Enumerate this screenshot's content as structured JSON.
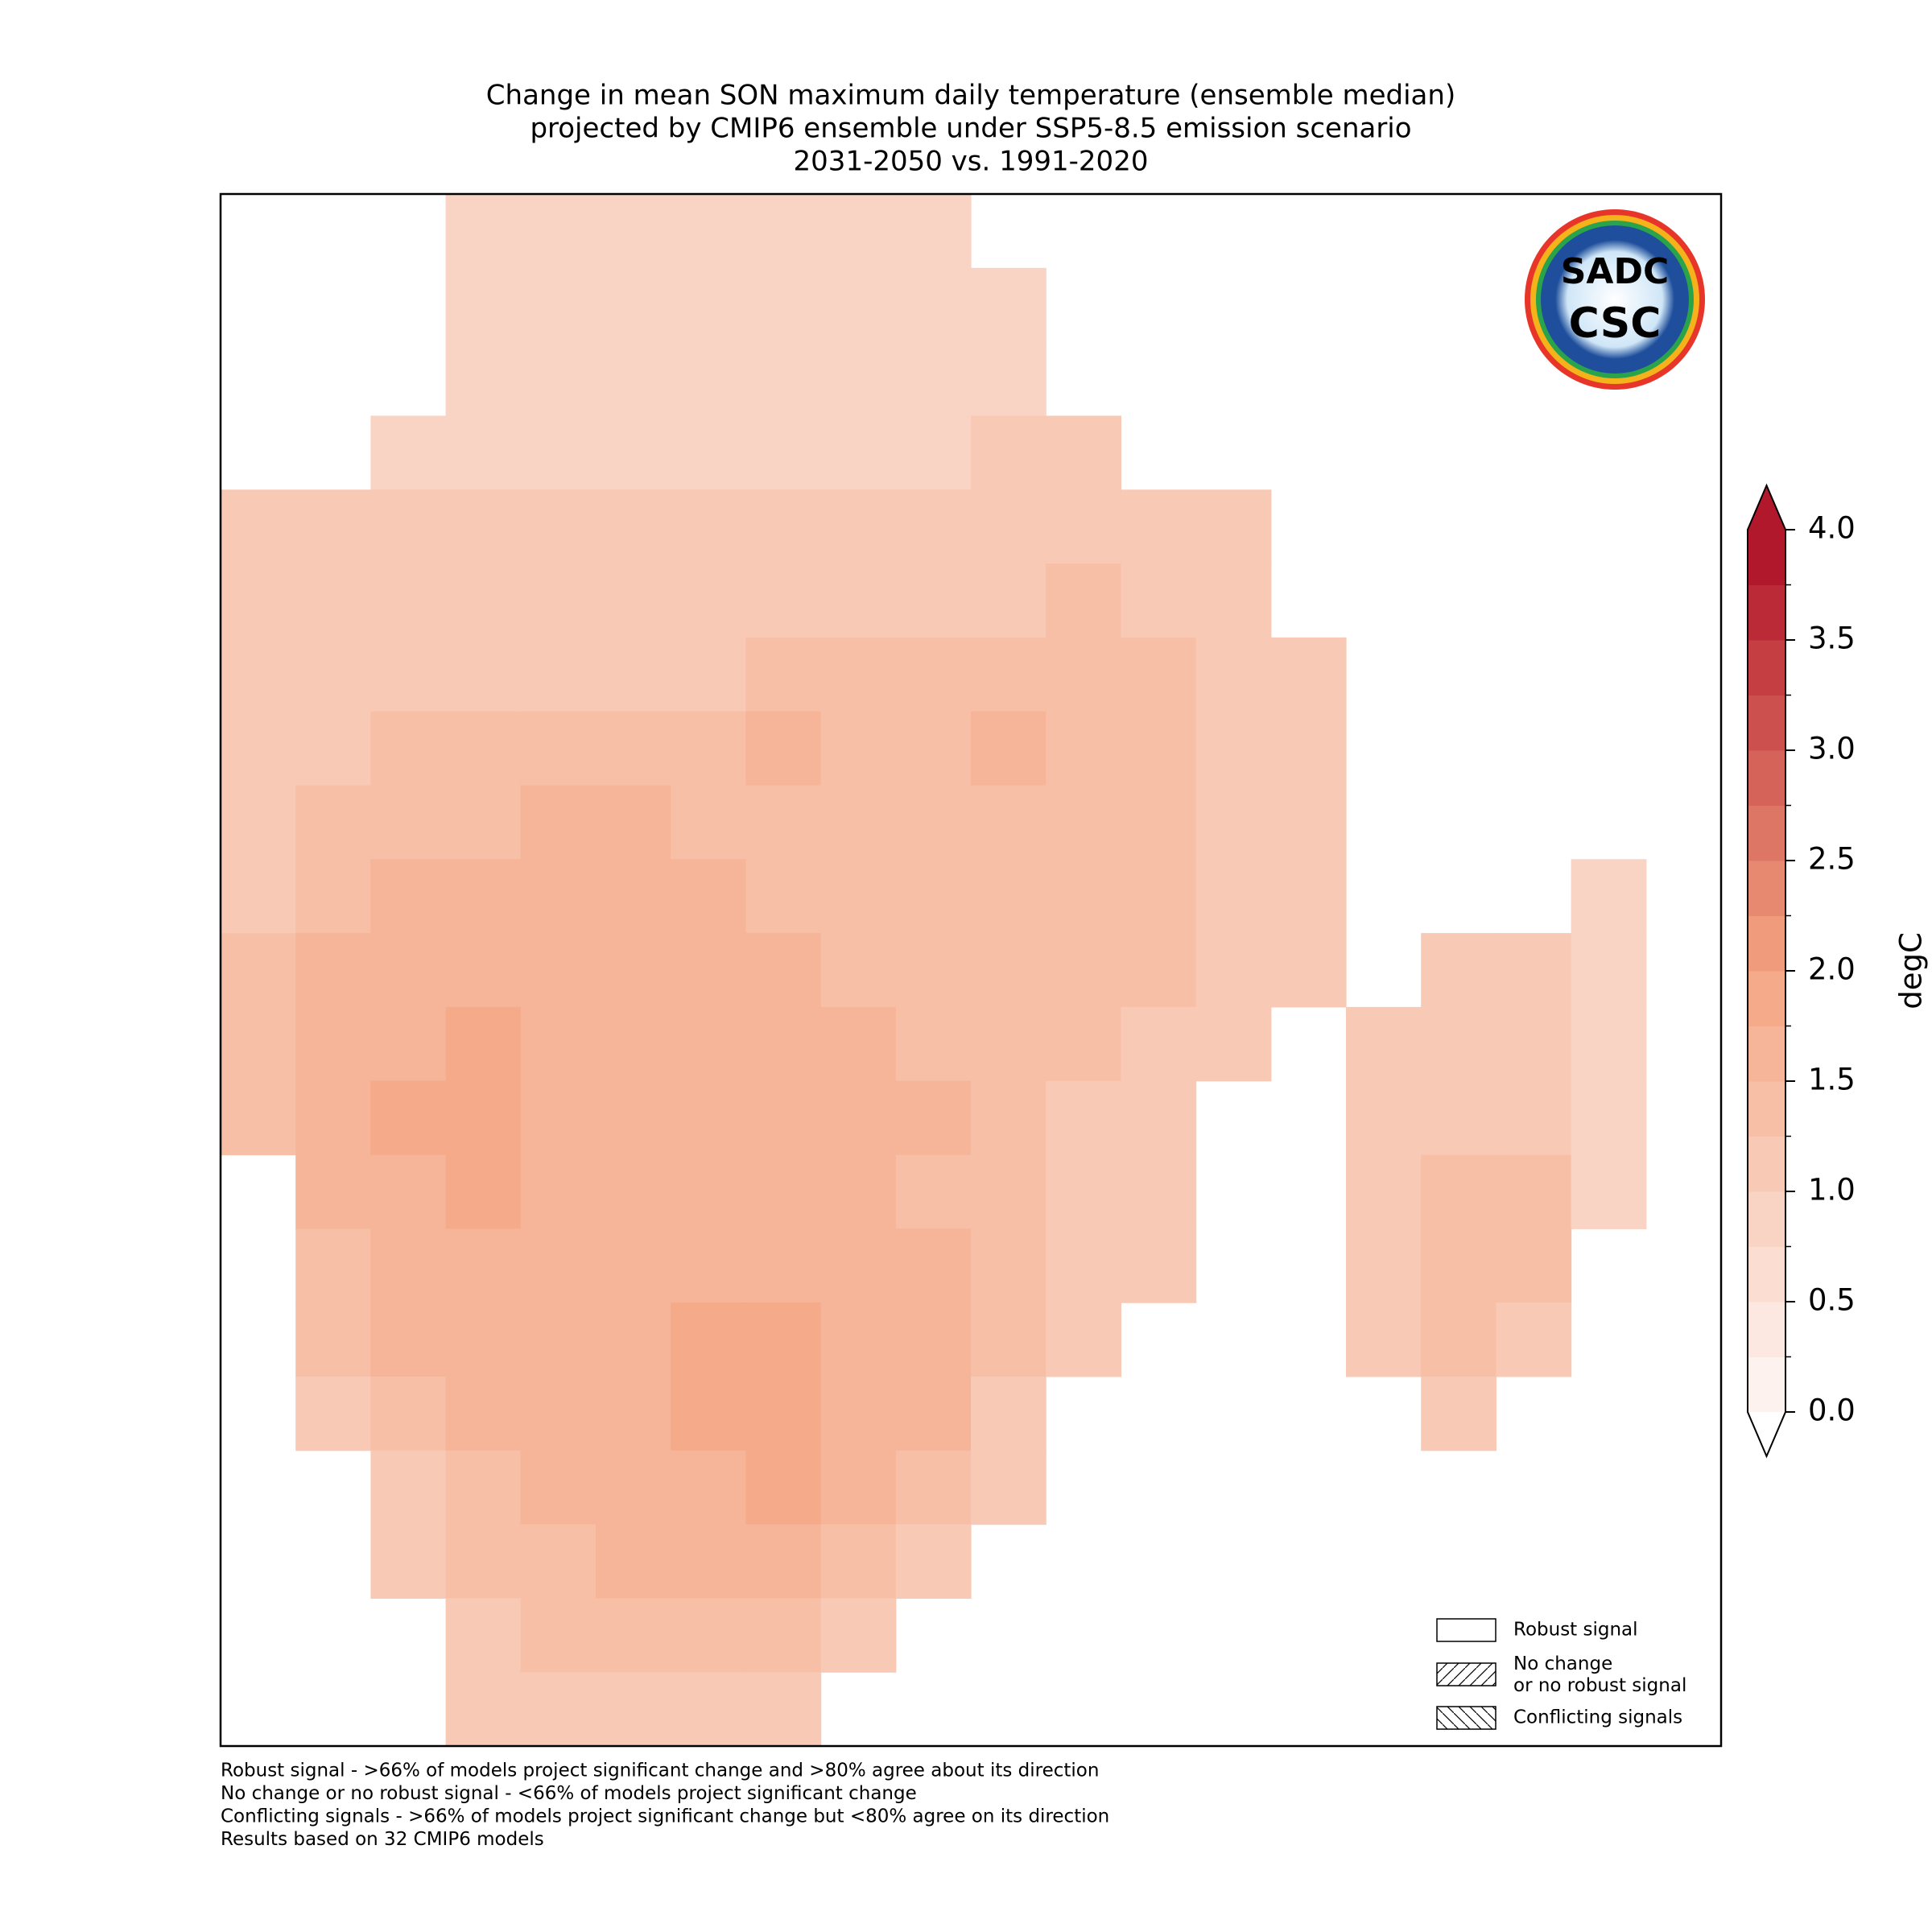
{
  "chart_data": {
    "type": "heatmap",
    "title": [
      "Change in mean SON maximum daily temperature (ensemble median)",
      "projected by CMIP6 ensemble under SSP5-8.5 emission scenario",
      "2031-2050 vs. 1991-2020"
    ],
    "cells": [
      [
        null,
        null,
        null,
        0.9,
        0.9,
        0.9,
        0.9,
        0.9,
        0.9,
        0.9,
        null,
        null,
        null,
        null,
        null,
        null,
        null,
        null,
        null,
        null
      ],
      [
        null,
        null,
        null,
        0.9,
        0.9,
        0.9,
        0.9,
        0.8,
        0.8,
        0.9,
        0.8,
        null,
        null,
        null,
        null,
        null,
        null,
        null,
        null,
        null
      ],
      [
        null,
        null,
        null,
        0.9,
        0.9,
        0.9,
        0.8,
        0.8,
        0.9,
        0.9,
        0.8,
        null,
        null,
        null,
        null,
        null,
        null,
        null,
        null,
        null
      ],
      [
        null,
        null,
        0.95,
        0.95,
        0.95,
        0.95,
        0.95,
        0.95,
        0.95,
        0.95,
        1.0,
        1.0,
        null,
        null,
        null,
        null,
        null,
        null,
        null,
        null
      ],
      [
        1.0,
        1.0,
        1.0,
        1.0,
        1.0,
        1.0,
        1.0,
        1.0,
        1.0,
        1.0,
        1.1,
        1.1,
        1.1,
        1.0,
        null,
        null,
        null,
        null,
        null,
        null
      ],
      [
        1.1,
        1.1,
        1.0,
        1.0,
        1.0,
        1.0,
        1.0,
        1.0,
        1.1,
        1.1,
        1.2,
        1.3,
        1.2,
        1.1,
        null,
        null,
        null,
        null,
        null,
        null
      ],
      [
        1.1,
        1.2,
        1.2,
        1.2,
        1.2,
        1.2,
        1.2,
        1.3,
        1.4,
        1.3,
        1.4,
        1.4,
        1.3,
        1.1,
        1.0,
        null,
        null,
        null,
        null,
        null
      ],
      [
        1.1,
        1.2,
        1.3,
        1.3,
        1.3,
        1.4,
        1.4,
        1.5,
        1.4,
        1.4,
        1.5,
        1.4,
        1.3,
        1.2,
        1.0,
        null,
        null,
        null,
        null,
        null
      ],
      [
        1.1,
        1.3,
        1.4,
        1.4,
        1.5,
        1.5,
        1.4,
        1.4,
        1.4,
        1.4,
        1.4,
        1.4,
        1.3,
        1.2,
        1.0,
        null,
        null,
        null,
        null,
        null
      ],
      [
        1.2,
        1.4,
        1.5,
        1.6,
        1.6,
        1.6,
        1.5,
        1.4,
        1.4,
        1.4,
        1.4,
        1.4,
        1.3,
        1.2,
        1.1,
        null,
        null,
        null,
        0.8,
        null
      ],
      [
        1.3,
        1.5,
        1.6,
        1.7,
        1.7,
        1.6,
        1.6,
        1.5,
        1.4,
        1.4,
        1.4,
        1.3,
        1.3,
        1.2,
        1.0,
        null,
        1.1,
        1.1,
        0.9,
        null
      ],
      [
        1.3,
        1.5,
        1.6,
        1.8,
        1.7,
        1.6,
        1.6,
        1.5,
        1.5,
        1.4,
        1.4,
        1.3,
        1.2,
        1.1,
        null,
        1.1,
        1.2,
        1.2,
        0.9,
        null
      ],
      [
        1.4,
        1.6,
        1.8,
        1.8,
        1.7,
        1.6,
        1.6,
        1.6,
        1.5,
        1.5,
        1.3,
        1.2,
        1.1,
        null,
        null,
        1.1,
        1.2,
        1.2,
        0.9,
        null
      ],
      [
        null,
        1.5,
        1.7,
        1.8,
        1.7,
        1.6,
        1.6,
        1.6,
        1.5,
        1.4,
        1.3,
        1.2,
        1.1,
        null,
        null,
        1.1,
        1.3,
        1.3,
        0.9,
        null
      ],
      [
        null,
        1.4,
        1.6,
        1.7,
        1.6,
        1.6,
        1.7,
        1.7,
        1.6,
        1.5,
        1.3,
        1.2,
        1.1,
        null,
        null,
        1.1,
        1.4,
        1.3,
        null,
        null
      ],
      [
        null,
        1.3,
        1.6,
        1.7,
        1.6,
        1.7,
        1.8,
        1.8,
        1.7,
        1.5,
        1.3,
        1.1,
        null,
        null,
        null,
        1.0,
        1.3,
        1.1,
        null,
        null
      ],
      [
        null,
        1.2,
        1.4,
        1.6,
        1.6,
        1.7,
        1.8,
        1.8,
        1.6,
        1.5,
        1.2,
        null,
        null,
        null,
        null,
        null,
        1.1,
        null,
        null,
        null
      ],
      [
        null,
        null,
        1.2,
        1.3,
        1.5,
        1.6,
        1.7,
        1.8,
        1.6,
        1.4,
        1.1,
        null,
        null,
        null,
        null,
        null,
        null,
        null,
        null,
        null
      ],
      [
        null,
        null,
        1.2,
        1.3,
        1.4,
        1.6,
        1.6,
        1.6,
        1.4,
        1.2,
        null,
        null,
        null,
        null,
        null,
        null,
        null,
        null,
        null,
        null
      ],
      [
        null,
        null,
        null,
        1.2,
        1.3,
        1.3,
        1.3,
        1.3,
        1.2,
        null,
        null,
        null,
        null,
        null,
        null,
        null,
        null,
        null,
        null,
        null
      ],
      [
        null,
        null,
        null,
        1.0,
        1.1,
        1.0,
        1.0,
        1.0,
        null,
        null,
        null,
        null,
        null,
        null,
        null,
        null,
        null,
        null,
        null,
        null
      ]
    ],
    "colorbar": {
      "label": "degC",
      "lim": [
        0,
        4
      ],
      "ticks": [
        {
          "value": 0,
          "label": "0.0"
        },
        {
          "value": 0.5,
          "label": "0.5"
        },
        {
          "value": 1,
          "label": "1.0"
        },
        {
          "value": 1.5,
          "label": "1.5"
        },
        {
          "value": 2,
          "label": "2.0"
        },
        {
          "value": 2.5,
          "label": "2.5"
        },
        {
          "value": 3,
          "label": "3.0"
        },
        {
          "value": 3.5,
          "label": "3.5"
        },
        {
          "value": 4,
          "label": "4.0"
        }
      ],
      "minor_step": 0.25,
      "colors": [
        "#fdf2ee",
        "#f4a582",
        "#b2182b"
      ]
    },
    "legend": [
      "Robust signal",
      "No change\nor no robust signal",
      "Conflicting signals"
    ],
    "footnotes": [
      "Robust signal - >66% of models project significant change and >80% agree about its direction",
      "No change or no robust signal - <66% of models project significant change",
      "Conflicting signals - >66% of models project significant change but <80% agree on its direction",
      "Results based on 32 CMIP6 models"
    ],
    "logo": [
      "SADC",
      "CSC"
    ]
  }
}
